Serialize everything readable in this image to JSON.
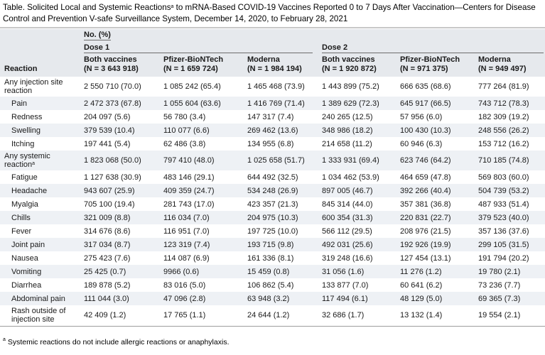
{
  "title": {
    "line1_a": "Table. Solicited Local and Systemic Reactions",
    "line1_sup": "a",
    "line1_b": " to mRNA-Based COVID-19 Vaccines Reported 0 to 7 Days After Vaccination—Centers for Disease",
    "line2": "Control and Prevention V-safe Surveillance System, December 14, 2020, to February 28, 2021"
  },
  "header": {
    "group": "No. (%)",
    "dose1": "Dose 1",
    "dose2": "Dose 2",
    "reaction": "Reaction",
    "columns": [
      {
        "name": "Both vaccines",
        "n": "(N = 3 643 918)"
      },
      {
        "name": "Pfizer-BioNTech",
        "n": "(N = 1 659 724)"
      },
      {
        "name": "Moderna",
        "n": "(N = 1 984 194)"
      },
      {
        "name": "Both vaccines",
        "n": "(N = 1 920 872)"
      },
      {
        "name": "Pfizer-BioNTech",
        "n": "(N = 971 375)"
      },
      {
        "name": "Moderna",
        "n": "(N = 949 497)"
      }
    ]
  },
  "rows": [
    {
      "label1": "Any injection site",
      "label2": "reaction",
      "sup": "",
      "values": [
        "2 550 710 (70.0)",
        "1 085 242 (65.4)",
        "1 465 468 (73.9)",
        "1 443 899 (75.2)",
        "666 635 (68.6)",
        "777 264 (81.9)"
      ]
    },
    {
      "label1": "Pain",
      "values": [
        "2 472 373 (67.8)",
        "1 055 604 (63.6)",
        "1 416 769 (71.4)",
        "1 389 629 (72.3)",
        "645 917 (66.5)",
        "743 712 (78.3)"
      ]
    },
    {
      "label1": "Redness",
      "values": [
        "204 097 (5.6)",
        "56 780 (3.4)",
        "147 317 (7.4)",
        "240 265 (12.5)",
        "57 956 (6.0)",
        "182 309 (19.2)"
      ]
    },
    {
      "label1": "Swelling",
      "values": [
        "379 539 (10.4)",
        "110 077 (6.6)",
        "269 462 (13.6)",
        "348 986 (18.2)",
        "100 430 (10.3)",
        "248 556 (26.2)"
      ]
    },
    {
      "label1": "Itching",
      "values": [
        "197 441 (5.4)",
        "62 486 (3.8)",
        "134 955 (6.8)",
        "214 658 (11.2)",
        "60 946 (6.3)",
        "153 712 (16.2)"
      ]
    },
    {
      "label1": "Any systemic",
      "label2": "reaction",
      "sup": "a",
      "values": [
        "1 823 068 (50.0)",
        "797 410 (48.0)",
        "1 025 658 (51.7)",
        "1 333 931 (69.4)",
        "623 746 (64.2)",
        "710 185 (74.8)"
      ]
    },
    {
      "label1": "Fatigue",
      "values": [
        "1 127 638 (30.9)",
        "483 146 (29.1)",
        "644 492 (32.5)",
        "1 034 462 (53.9)",
        "464 659 (47.8)",
        "569 803 (60.0)"
      ]
    },
    {
      "label1": "Headache",
      "values": [
        "943 607 (25.9)",
        "409 359 (24.7)",
        "534 248 (26.9)",
        "897 005 (46.7)",
        "392 266 (40.4)",
        "504 739 (53.2)"
      ]
    },
    {
      "label1": "Myalgia",
      "values": [
        "705 100 (19.4)",
        "281 743 (17.0)",
        "423 357 (21.3)",
        "845 314 (44.0)",
        "357 381 (36.8)",
        "487 933 (51.4)"
      ]
    },
    {
      "label1": "Chills",
      "values": [
        "321 009 (8.8)",
        "116 034 (7.0)",
        "204 975 (10.3)",
        "600 354 (31.3)",
        "220 831 (22.7)",
        "379 523 (40.0)"
      ]
    },
    {
      "label1": "Fever",
      "values": [
        "314 676 (8.6)",
        "116 951 (7.0)",
        "197 725 (10.0)",
        "566 112 (29.5)",
        "208 976 (21.5)",
        "357 136 (37.6)"
      ]
    },
    {
      "label1": "Joint pain",
      "values": [
        "317 034 (8.7)",
        "123 319 (7.4)",
        "193 715 (9.8)",
        "492 031 (25.6)",
        "192 926 (19.9)",
        "299 105 (31.5)"
      ]
    },
    {
      "label1": "Nausea",
      "values": [
        "275 423 (7.6)",
        "114 087 (6.9)",
        "161 336 (8.1)",
        "319 248 (16.6)",
        "127 454 (13.1)",
        "191 794 (20.2)"
      ]
    },
    {
      "label1": "Vomiting",
      "values": [
        "25 425 (0.7)",
        "9966 (0.6)",
        "15 459 (0.8)",
        "31 056 (1.6)",
        "11 276 (1.2)",
        "19 780 (2.1)"
      ]
    },
    {
      "label1": "Diarrhea",
      "values": [
        "189 878 (5.2)",
        "83 016 (5.0)",
        "106 862 (5.4)",
        "133 877 (7.0)",
        "60 641 (6.2)",
        "73 236 (7.7)"
      ]
    },
    {
      "label1": "Abdominal pain",
      "values": [
        "111 044 (3.0)",
        "47 096 (2.8)",
        "63 948 (3.2)",
        "117 494 (6.1)",
        "48 129 (5.0)",
        "69 365 (7.3)"
      ]
    },
    {
      "label1": "Rash outside of",
      "label2": "injection site",
      "values": [
        "42 409 (1.2)",
        "17 765 (1.1)",
        "24 644 (1.2)",
        "32 686 (1.7)",
        "13 132 (1.4)",
        "19 554 (2.1)"
      ]
    }
  ],
  "footnote": {
    "sup": "a",
    "text": " Systemic reactions do not include allergic reactions or anaphylaxis."
  }
}
